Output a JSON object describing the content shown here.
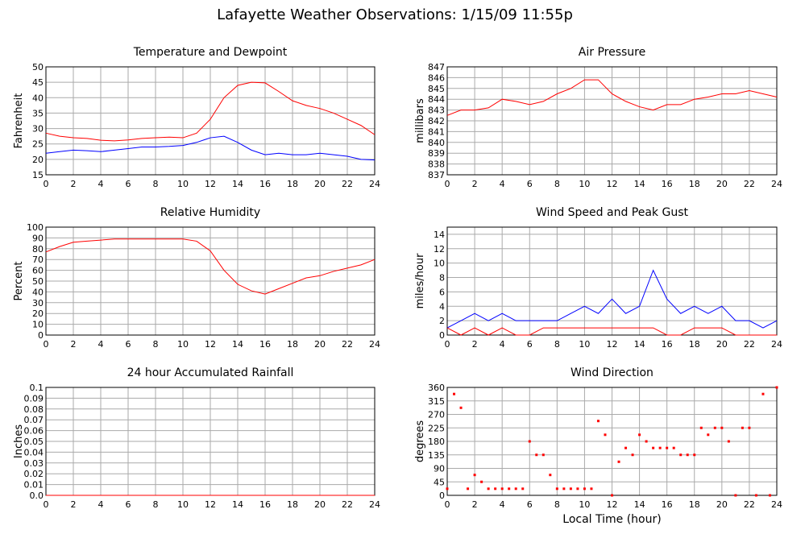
{
  "title": "Lafayette Weather Observations: 1/15/09 11:55p",
  "chart_data": [
    {
      "type": "line",
      "title": "Temperature and Dewpoint",
      "ylabel": "Fahrenheit",
      "x": [
        0,
        1,
        2,
        3,
        4,
        5,
        6,
        7,
        8,
        9,
        10,
        11,
        12,
        13,
        14,
        15,
        16,
        17,
        18,
        19,
        20,
        21,
        22,
        23,
        24
      ],
      "series": [
        {
          "color": "#ff0000",
          "values": [
            28.5,
            27.5,
            27,
            26.8,
            26.2,
            26,
            26.3,
            26.8,
            27,
            27.2,
            27,
            28.5,
            33,
            40,
            44,
            45,
            44.8,
            42,
            39,
            37.5,
            36.5,
            35,
            33,
            31,
            28
          ]
        },
        {
          "color": "#0000ff",
          "values": [
            22,
            22.5,
            23,
            22.8,
            22.5,
            23,
            23.5,
            24,
            24,
            24.2,
            24.5,
            25.5,
            27,
            27.5,
            25.5,
            23,
            21.5,
            22,
            21.5,
            21.5,
            22,
            21.5,
            21,
            20,
            19.8
          ]
        }
      ],
      "xlim": [
        0,
        24
      ],
      "ylim": [
        15,
        50
      ],
      "xticks": [
        0,
        2,
        4,
        6,
        8,
        10,
        12,
        14,
        16,
        18,
        20,
        22,
        24
      ],
      "yticks": [
        15,
        20,
        25,
        30,
        35,
        40,
        45,
        50
      ],
      "grid": true
    },
    {
      "type": "line",
      "title": "Air Pressure",
      "ylabel": "millibars",
      "x": [
        0,
        1,
        2,
        3,
        4,
        5,
        6,
        7,
        8,
        9,
        10,
        11,
        12,
        13,
        14,
        15,
        16,
        17,
        18,
        19,
        20,
        21,
        22,
        23,
        24
      ],
      "series": [
        {
          "color": "#ff0000",
          "values": [
            842.5,
            843,
            843,
            843.2,
            844,
            843.8,
            843.5,
            843.8,
            844.5,
            845,
            845.8,
            845.8,
            844.5,
            843.8,
            843.3,
            843,
            843.5,
            843.5,
            844,
            844.2,
            844.5,
            844.5,
            844.8,
            844.5,
            844.2
          ]
        }
      ],
      "xlim": [
        0,
        24
      ],
      "ylim": [
        837,
        847
      ],
      "xticks": [
        0,
        2,
        4,
        6,
        8,
        10,
        12,
        14,
        16,
        18,
        20,
        22,
        24
      ],
      "yticks": [
        837,
        838,
        839,
        840,
        841,
        842,
        843,
        844,
        845,
        846,
        847
      ],
      "grid": true
    },
    {
      "type": "line",
      "title": "Relative Humidity",
      "ylabel": "Percent",
      "x": [
        0,
        1,
        2,
        3,
        4,
        5,
        6,
        7,
        8,
        9,
        10,
        11,
        12,
        13,
        14,
        15,
        16,
        17,
        18,
        19,
        20,
        21,
        22,
        23,
        24
      ],
      "series": [
        {
          "color": "#ff0000",
          "values": [
            77,
            82,
            86,
            87,
            88,
            89,
            89,
            89,
            89,
            89,
            89,
            87,
            78,
            60,
            47,
            41,
            38,
            43,
            48,
            53,
            55,
            59,
            62,
            65,
            70
          ]
        }
      ],
      "xlim": [
        0,
        24
      ],
      "ylim": [
        0,
        100
      ],
      "xticks": [
        0,
        2,
        4,
        6,
        8,
        10,
        12,
        14,
        16,
        18,
        20,
        22,
        24
      ],
      "yticks": [
        0,
        10,
        20,
        30,
        40,
        50,
        60,
        70,
        80,
        90,
        100
      ],
      "grid": true
    },
    {
      "type": "line",
      "title": "Wind Speed and Peak Gust",
      "ylabel": "miles/hour",
      "x": [
        0,
        1,
        2,
        3,
        4,
        5,
        6,
        7,
        8,
        9,
        10,
        11,
        12,
        13,
        14,
        15,
        16,
        17,
        18,
        19,
        20,
        21,
        22,
        23,
        24
      ],
      "series": [
        {
          "color": "#0000ff",
          "values": [
            1,
            2,
            3,
            2,
            3,
            2,
            2,
            2,
            2,
            3,
            4,
            3,
            5,
            3,
            4,
            9,
            5,
            3,
            4,
            3,
            4,
            2,
            2,
            1,
            2
          ]
        },
        {
          "color": "#ff0000",
          "values": [
            1,
            0,
            1,
            0,
            1,
            0,
            0,
            1,
            1,
            1,
            1,
            1,
            1,
            1,
            1,
            1,
            0,
            0,
            1,
            1,
            1,
            0,
            0,
            0,
            0
          ]
        }
      ],
      "xlim": [
        0,
        24
      ],
      "ylim": [
        0,
        15
      ],
      "xticks": [
        0,
        2,
        4,
        6,
        8,
        10,
        12,
        14,
        16,
        18,
        20,
        22,
        24
      ],
      "yticks": [
        0,
        2,
        4,
        6,
        8,
        10,
        12,
        14
      ],
      "grid": true
    },
    {
      "type": "line",
      "title": "24 hour Accumulated Rainfall",
      "ylabel": "Inches",
      "x": [
        0,
        24
      ],
      "series": [
        {
          "color": "#ff0000",
          "values": [
            0,
            0
          ]
        }
      ],
      "xlim": [
        0,
        24
      ],
      "ylim": [
        0,
        0.1
      ],
      "xticks": [
        0,
        2,
        4,
        6,
        8,
        10,
        12,
        14,
        16,
        18,
        20,
        22,
        24
      ],
      "yticks": [
        {
          "value": 0,
          "label": "0.0"
        },
        0.01,
        0.02,
        0.03,
        0.04,
        0.05,
        0.06,
        0.07,
        0.08,
        0.09,
        {
          "value": 0.1,
          "label": "0.1"
        }
      ],
      "grid": true
    },
    {
      "type": "scatter",
      "title": "Wind Direction",
      "ylabel": "degrees",
      "xlabel": "Local Time (hour)",
      "x": [
        0,
        0.5,
        1,
        1.5,
        2,
        2.5,
        3,
        3.5,
        4,
        4.5,
        5,
        5.5,
        6,
        6.5,
        7,
        7.5,
        8,
        8.5,
        9,
        9.5,
        10,
        10.5,
        11,
        11.5,
        12,
        12.5,
        13,
        13.5,
        14,
        14.5,
        15,
        15.5,
        16,
        16.5,
        17,
        17.5,
        18,
        18.5,
        19,
        19.5,
        20,
        20.5,
        21,
        21.5,
        22,
        22.5,
        23,
        23.5,
        24
      ],
      "series": [
        {
          "color": "#ff0000",
          "values": [
            22,
            338,
            292,
            22,
            68,
            45,
            22,
            22,
            22,
            22,
            22,
            22,
            180,
            135,
            135,
            68,
            22,
            22,
            22,
            22,
            22,
            22,
            248,
            202,
            0,
            112,
            158,
            135,
            202,
            180,
            158,
            158,
            158,
            158,
            135,
            135,
            135,
            225,
            202,
            225,
            225,
            180,
            0,
            225,
            225,
            0,
            338,
            0,
            360
          ]
        }
      ],
      "xlim": [
        0,
        24
      ],
      "ylim": [
        0,
        360
      ],
      "xticks": [
        0,
        2,
        4,
        6,
        8,
        10,
        12,
        14,
        16,
        18,
        20,
        22,
        24
      ],
      "yticks": [
        0,
        45,
        90,
        135,
        180,
        225,
        270,
        315,
        360
      ],
      "grid": true
    }
  ]
}
